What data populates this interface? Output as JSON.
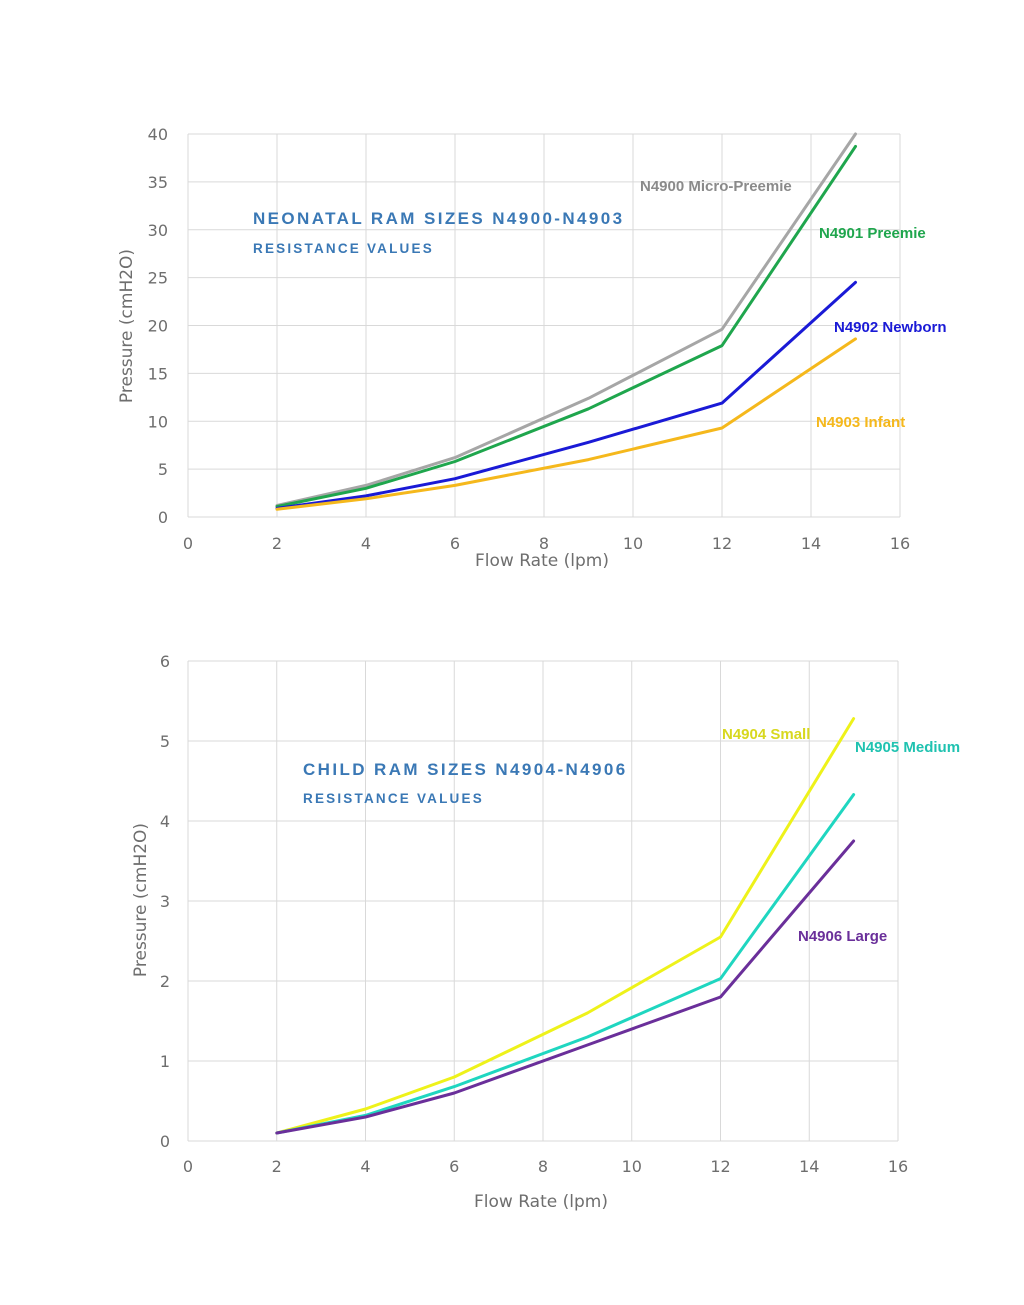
{
  "chart_data": [
    {
      "type": "line",
      "title": "NEONATAL RAM SIZES N4900-N4903",
      "subtitle": "RESISTANCE VALUES",
      "xlabel": "Flow Rate (lpm)",
      "ylabel": "Pressure (cmH2O)",
      "xlim": [
        0,
        16
      ],
      "ylim": [
        0,
        40
      ],
      "xticks": [
        "0",
        "2",
        "4",
        "6",
        "8",
        "10",
        "12",
        "14",
        "16"
      ],
      "yticks": [
        "0",
        "5",
        "10",
        "15",
        "20",
        "25",
        "30",
        "35",
        "40"
      ],
      "xtick_values": [
        0,
        2,
        4,
        6,
        8,
        10,
        12,
        14,
        16
      ],
      "ytick_values": [
        0,
        5,
        10,
        15,
        20,
        25,
        30,
        35,
        40
      ],
      "grid": true,
      "series": [
        {
          "name": "N4900 Micro-Preemie",
          "color": "#a6a6a6",
          "x": [
            2,
            4,
            6,
            9,
            12,
            15
          ],
          "y": [
            1.2,
            3.3,
            6.2,
            12.4,
            19.6,
            40
          ]
        },
        {
          "name": "N4901 Preemie",
          "color": "#1fa64d",
          "x": [
            2,
            4,
            6,
            9,
            12,
            15
          ],
          "y": [
            1.1,
            3.0,
            5.8,
            11.3,
            17.9,
            38.7
          ]
        },
        {
          "name": "N4902 Newborn",
          "color": "#1a1ad6",
          "x": [
            2,
            4,
            6,
            9,
            12,
            15
          ],
          "y": [
            0.9,
            2.2,
            4.0,
            7.8,
            11.9,
            24.5
          ]
        },
        {
          "name": "N4903 Infant",
          "color": "#f5b81c",
          "x": [
            2,
            4,
            6,
            9,
            12,
            15
          ],
          "y": [
            0.8,
            1.9,
            3.3,
            6.0,
            9.3,
            18.6
          ]
        }
      ]
    },
    {
      "type": "line",
      "title": "CHILD RAM SIZES N4904-N4906",
      "subtitle": "RESISTANCE VALUES",
      "xlabel": "Flow Rate (lpm)",
      "ylabel": "Pressure (cmH2O)",
      "xlim": [
        0,
        16
      ],
      "ylim": [
        0,
        6
      ],
      "xticks": [
        "0",
        "2",
        "4",
        "6",
        "8",
        "10",
        "12",
        "14",
        "16"
      ],
      "yticks": [
        "0",
        "1",
        "2",
        "3",
        "4",
        "5",
        "6"
      ],
      "xtick_values": [
        0,
        2,
        4,
        6,
        8,
        10,
        12,
        14,
        16
      ],
      "ytick_values": [
        0,
        1,
        2,
        3,
        4,
        5,
        6
      ],
      "grid": true,
      "series": [
        {
          "name": "N4904 Small",
          "color": "#eef21a",
          "x": [
            2,
            4,
            6,
            9,
            12,
            15
          ],
          "y": [
            0.1,
            0.4,
            0.8,
            1.6,
            2.55,
            5.28
          ]
        },
        {
          "name": "N4905 Medium",
          "color": "#1fd6c0",
          "x": [
            2,
            4,
            6,
            9,
            12,
            15
          ],
          "y": [
            0.1,
            0.32,
            0.68,
            1.3,
            2.03,
            4.33
          ]
        },
        {
          "name": "N4906 Large",
          "color": "#6a2f9a",
          "x": [
            2,
            4,
            6,
            9,
            12,
            15
          ],
          "y": [
            0.1,
            0.3,
            0.6,
            1.2,
            1.8,
            3.75
          ]
        }
      ]
    }
  ]
}
